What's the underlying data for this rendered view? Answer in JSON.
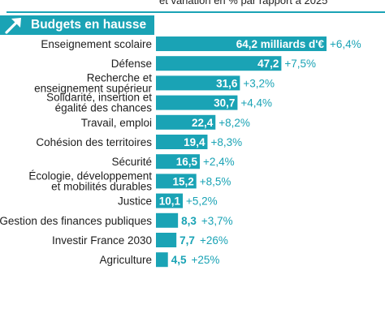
{
  "subtitle": "et variation en % par rapport à 2025",
  "header": {
    "title": "Budgets en hausse"
  },
  "colors": {
    "accent": "#1aa3b5",
    "bar": "#1aa3b5",
    "value_on_bar": "#ffffff",
    "value_off_bar": "#1aa3b5"
  },
  "chart_data": {
    "type": "bar",
    "orientation": "horizontal",
    "title": "Budgets en hausse",
    "categories": [
      "Enseignement scolaire",
      "Défense",
      "Recherche et enseignement supérieur",
      "Solidarité, insertion et égalité des chances",
      "Travail, emploi",
      "Cohésion des territoires",
      "Sécurité",
      "Écologie, développement et mobilités durables",
      "Justice",
      "Gestion des finances publiques",
      "Investir France 2030",
      "Agriculture"
    ],
    "category_lines": [
      [
        "Enseignement scolaire"
      ],
      [
        "Défense"
      ],
      [
        "Recherche et",
        "enseignement supérieur"
      ],
      [
        "Solidarité, insertion et",
        "égalité des chances"
      ],
      [
        "Travail, emploi"
      ],
      [
        "Cohésion des territoires"
      ],
      [
        "Sécurité"
      ],
      [
        "Écologie, développement",
        "et mobilités durables"
      ],
      [
        "Justice"
      ],
      [
        "Gestion des finances publiques"
      ],
      [
        "Investir France 2030"
      ],
      [
        "Agriculture"
      ]
    ],
    "values": [
      64.2,
      47.2,
      31.6,
      30.7,
      22.4,
      19.4,
      16.5,
      15.2,
      10.1,
      8.3,
      7.7,
      4.5
    ],
    "value_labels": [
      "64,2 milliards d'€",
      "47,2",
      "31,6",
      "30,7",
      "22,4",
      "19,4",
      "16,5",
      "15,2",
      "10,1",
      "8,3",
      "7,7",
      "4,5"
    ],
    "change_labels": [
      "+6,4%",
      "+7,5%",
      "+3,2%",
      "+4,4%",
      "+8,2%",
      "+8,3%",
      "+2,4%",
      "+8,5%",
      "+5,2%",
      "+3,7%",
      "+26%",
      "+25%"
    ],
    "value_inside_bar": [
      true,
      true,
      true,
      true,
      true,
      true,
      true,
      true,
      true,
      false,
      false,
      false
    ],
    "xlim": [
      0,
      64.2
    ]
  }
}
